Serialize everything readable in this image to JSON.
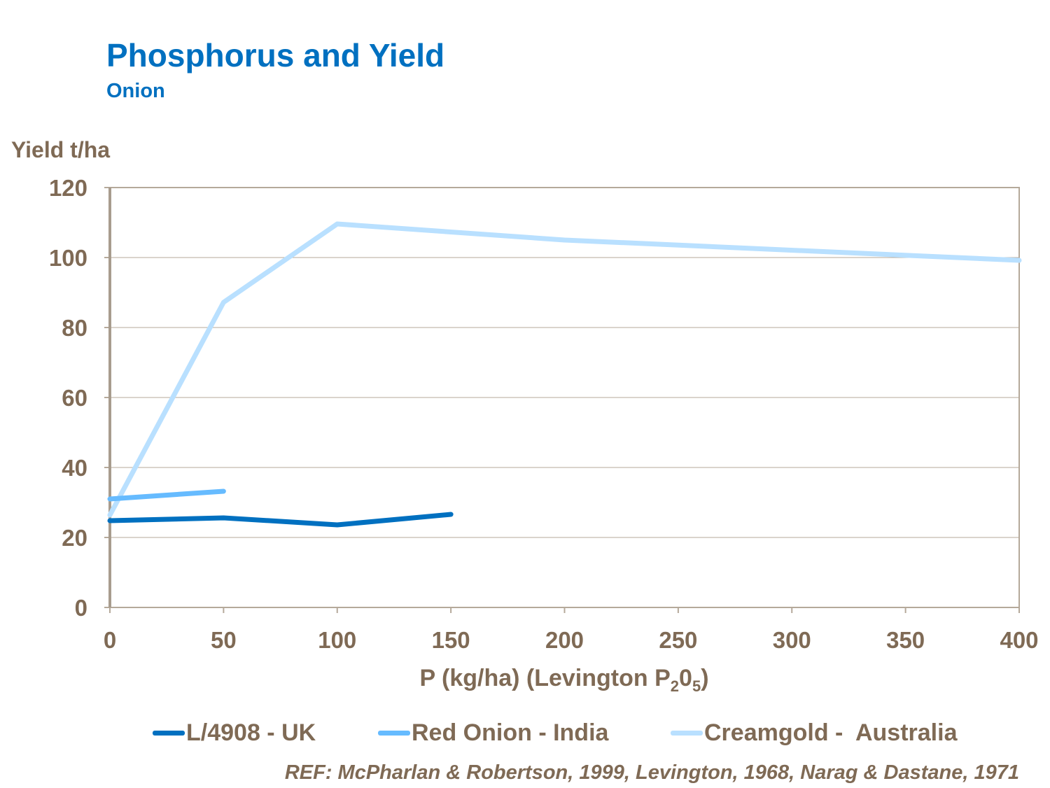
{
  "chart_data": {
    "type": "line",
    "title": "Phosphorus and Yield",
    "subtitle": "Onion",
    "ylabel": "Yield t/ha",
    "xlabel_parts": {
      "main": "P (kg/ha) (Levington P",
      "sub1": "2",
      "mid": "0",
      "sub2": "5",
      "end": ")"
    },
    "xlim": [
      0,
      400
    ],
    "ylim": [
      0,
      120
    ],
    "xticks": [
      0,
      50,
      100,
      150,
      200,
      250,
      300,
      350,
      400
    ],
    "yticks": [
      0,
      20,
      40,
      60,
      80,
      100,
      120
    ],
    "grid": true,
    "legend_position": "bottom",
    "series": [
      {
        "name": "L/4908 - UK",
        "color": "#0070c0",
        "x": [
          0,
          50,
          100,
          150
        ],
        "y": [
          24.8,
          25.6,
          23.6,
          26.6
        ]
      },
      {
        "name": "Red Onion - India",
        "color": "#66bbff",
        "x": [
          0,
          50
        ],
        "y": [
          31,
          33.2
        ]
      },
      {
        "name": "Creamgold -  Australia",
        "color": "#b9e0ff",
        "x": [
          0,
          50,
          100,
          200,
          400
        ],
        "y": [
          26.4,
          87.2,
          109.6,
          105,
          99.2
        ]
      }
    ],
    "reference": "REF: McPharlan & Robertson, 1999, Levington, 1968, Narag & Dastane, 1971"
  }
}
